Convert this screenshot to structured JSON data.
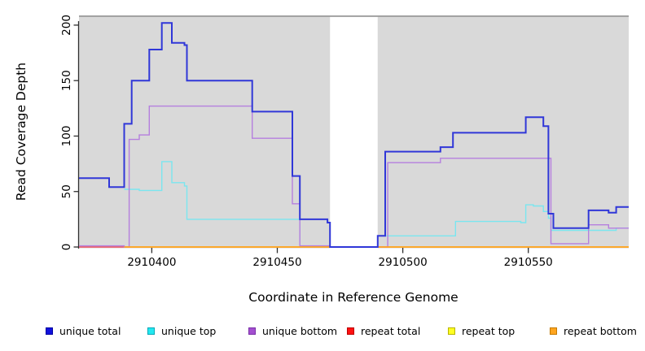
{
  "figure": {
    "background": "#ffffff",
    "panel_color": "#d9d9d9",
    "panel_top_border_color": "#9b9b9b",
    "axis_color": "#2f2f2f"
  },
  "chart_data": {
    "type": "line",
    "subtype": "step-coverage",
    "title": "",
    "xlabel": "Coordinate in Reference Genome",
    "ylabel": "Read Coverage Depth",
    "x_range": [
      2910371,
      2910590
    ],
    "y_range": [
      0,
      208
    ],
    "x_ticks": [
      2910400,
      2910450,
      2910500,
      2910550
    ],
    "y_ticks": [
      0,
      50,
      100,
      150,
      200
    ],
    "grid": false,
    "legend_position": "bottom",
    "background_regions": [
      {
        "from": 2910371,
        "to": 2910471,
        "color": "#d9d9d9",
        "note": "repeat/covered region"
      },
      {
        "from": 2910490,
        "to": 2910590,
        "color": "#d9d9d9",
        "note": "repeat/covered region"
      }
    ],
    "zero_coverage_gap": {
      "from": 2910471,
      "to": 2910490,
      "color": "#ffffff"
    },
    "series": [
      {
        "name": "repeat total",
        "color": "#ef4d55",
        "width": 1.4,
        "points": [
          [
            2910371,
            0
          ],
          [
            2910389,
            0
          ]
        ]
      },
      {
        "name": "repeat top",
        "color": "#ffee33",
        "width": 1.4,
        "points": [
          [
            2910389,
            0
          ],
          [
            2910590,
            0
          ]
        ]
      },
      {
        "name": "unique top",
        "color": "#7ae6ef",
        "width": 1.4,
        "points": [
          [
            2910389,
            52
          ],
          [
            2910395,
            51
          ],
          [
            2910404,
            77
          ],
          [
            2910408,
            58
          ],
          [
            2910413,
            55
          ],
          [
            2910414,
            25
          ],
          [
            2910459,
            0
          ],
          [
            2910490,
            10
          ],
          [
            2910521,
            23
          ],
          [
            2910547,
            22
          ],
          [
            2910549,
            38
          ],
          [
            2910552,
            37
          ],
          [
            2910556,
            32
          ],
          [
            2910558,
            26
          ],
          [
            2910559,
            15
          ],
          [
            2910585,
            17
          ],
          [
            2910590,
            17
          ]
        ]
      },
      {
        "name": "unique bottom",
        "color": "#b57fde",
        "width": 1.4,
        "points": [
          [
            2910371,
            1
          ],
          [
            2910389,
            0
          ],
          [
            2910391,
            97
          ],
          [
            2910395,
            101
          ],
          [
            2910399,
            127
          ],
          [
            2910440,
            98
          ],
          [
            2910456,
            39
          ],
          [
            2910459,
            1
          ],
          [
            2910471,
            0
          ],
          [
            2910494,
            76
          ],
          [
            2910515,
            80
          ],
          [
            2910559,
            3
          ],
          [
            2910574,
            20
          ],
          [
            2910582,
            17
          ],
          [
            2910590,
            17
          ]
        ]
      },
      {
        "name": "repeat bottom",
        "color": "#ff9f1f",
        "width": 1.8,
        "points": [
          [
            2910389,
            0
          ],
          [
            2910590,
            0
          ]
        ]
      },
      {
        "name": "unique total",
        "color": "#3037d8",
        "width": 2,
        "points": [
          [
            2910371,
            62
          ],
          [
            2910383,
            54
          ],
          [
            2910389,
            111
          ],
          [
            2910392,
            150
          ],
          [
            2910399,
            178
          ],
          [
            2910404,
            202
          ],
          [
            2910408,
            184
          ],
          [
            2910413,
            182
          ],
          [
            2910414,
            150
          ],
          [
            2910440,
            122
          ],
          [
            2910456,
            64
          ],
          [
            2910459,
            25
          ],
          [
            2910470,
            22
          ],
          [
            2910471,
            0
          ],
          [
            2910490,
            10
          ],
          [
            2910493,
            86
          ],
          [
            2910515,
            90
          ],
          [
            2910520,
            103
          ],
          [
            2910549,
            117
          ],
          [
            2910556,
            109
          ],
          [
            2910558,
            30
          ],
          [
            2910560,
            17
          ],
          [
            2910574,
            33
          ],
          [
            2910582,
            31
          ],
          [
            2910585,
            36
          ],
          [
            2910590,
            36
          ]
        ]
      }
    ]
  },
  "legend": {
    "items": [
      {
        "label": "unique total",
        "fill": "#1111dd",
        "border": "#0000a0"
      },
      {
        "label": "unique top",
        "fill": "#22e8f0",
        "border": "#0aa8b8"
      },
      {
        "label": "unique bottom",
        "fill": "#a44fd0",
        "border": "#7a2fa8"
      },
      {
        "label": "repeat total",
        "fill": "#ff1111",
        "border": "#bb0000"
      },
      {
        "label": "repeat top",
        "fill": "#ffff22",
        "border": "#b8b400"
      },
      {
        "label": "repeat bottom",
        "fill": "#ffa51f",
        "border": "#c57a00"
      }
    ]
  }
}
